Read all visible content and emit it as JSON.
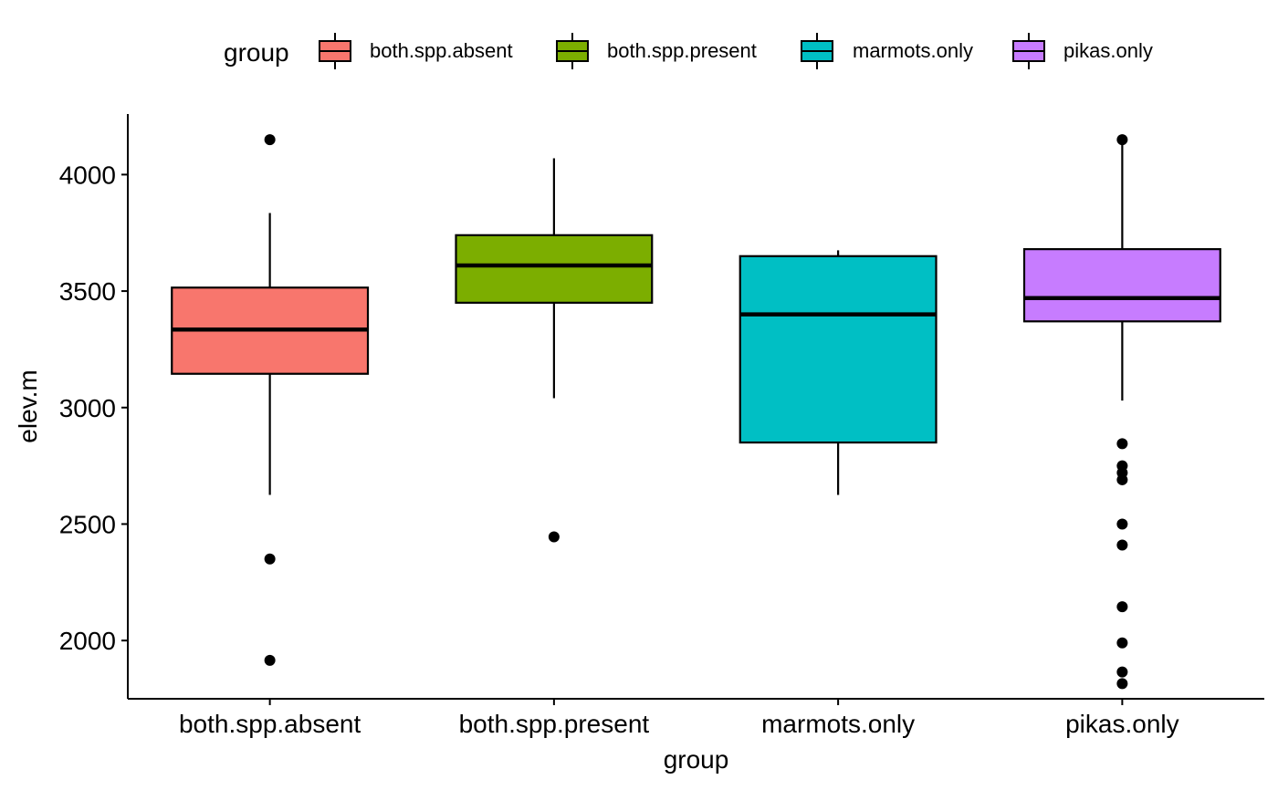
{
  "chart_data": {
    "type": "box",
    "xlabel": "group",
    "ylabel": "elev.m",
    "ylim": [
      1750,
      4260
    ],
    "yticks": [
      2000,
      2500,
      3000,
      3500,
      4000
    ],
    "grid": false,
    "legend": {
      "title": "group",
      "placement": "top",
      "items": [
        "both.spp.absent",
        "both.spp.present",
        "marmots.only",
        "pikas.only"
      ]
    },
    "categories": [
      "both.spp.absent",
      "both.spp.present",
      "marmots.only",
      "pikas.only"
    ],
    "colors": {
      "both.spp.absent": "#F8766D",
      "both.spp.present": "#7CAE00",
      "marmots.only": "#00BFC4",
      "pikas.only": "#C77CFF"
    },
    "boxes": [
      {
        "group": "both.spp.absent",
        "whisker_low": 2625,
        "q1": 3145,
        "median": 3335,
        "q3": 3515,
        "whisker_high": 3835,
        "outliers": [
          4150,
          2350,
          1915
        ]
      },
      {
        "group": "both.spp.present",
        "whisker_low": 3040,
        "q1": 3450,
        "median": 3610,
        "q3": 3740,
        "whisker_high": 4070,
        "outliers": [
          2445
        ]
      },
      {
        "group": "marmots.only",
        "whisker_low": 2625,
        "q1": 2850,
        "median": 3400,
        "q3": 3650,
        "whisker_high": 3675,
        "outliers": []
      },
      {
        "group": "pikas.only",
        "whisker_low": 3030,
        "q1": 3370,
        "median": 3470,
        "q3": 3680,
        "whisker_high": 4150,
        "outliers": [
          4150,
          2845,
          2750,
          2720,
          2690,
          2500,
          2410,
          2145,
          1990,
          1865,
          1815
        ]
      }
    ]
  }
}
